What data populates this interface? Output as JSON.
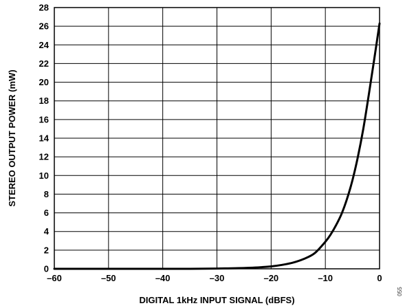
{
  "chart_data": {
    "type": "line",
    "title": "",
    "xlabel": "DIGITAL 1kHz INPUT SIGNAL (dBFS)",
    "ylabel": "STEREO OUTPUT POWER (mW)",
    "xlim": [
      -60,
      0
    ],
    "ylim": [
      0,
      28
    ],
    "x_ticks": [
      -60,
      -50,
      -40,
      -30,
      -20,
      -10,
      0
    ],
    "x_tick_labels": [
      "–60",
      "–50",
      "–40",
      "–30",
      "–20",
      "–10",
      "0"
    ],
    "y_ticks": [
      0,
      2,
      4,
      6,
      8,
      10,
      12,
      14,
      16,
      18,
      20,
      22,
      24,
      26,
      28
    ],
    "y_tick_labels": [
      "0",
      "2",
      "4",
      "6",
      "8",
      "10",
      "12",
      "14",
      "16",
      "18",
      "20",
      "22",
      "24",
      "26",
      "28"
    ],
    "grid": true,
    "legend": "none",
    "series": [
      {
        "color": "#000000",
        "x": [
          -60,
          -55,
          -50,
          -45,
          -40,
          -35,
          -30,
          -28,
          -26,
          -24,
          -22,
          -20,
          -18,
          -16,
          -14,
          -12,
          -10,
          -9,
          -8,
          -7,
          -6,
          -5,
          -4,
          -3,
          -2,
          -1,
          0
        ],
        "y": [
          0.0,
          0.0,
          0.0,
          0.0,
          0.0,
          0.0,
          0.03,
          0.05,
          0.07,
          0.11,
          0.17,
          0.26,
          0.42,
          0.66,
          1.05,
          1.66,
          2.9,
          3.7,
          4.7,
          5.9,
          7.5,
          9.5,
          12.0,
          15.0,
          18.6,
          22.4,
          26.3
        ]
      }
    ],
    "figure_id": "055"
  }
}
